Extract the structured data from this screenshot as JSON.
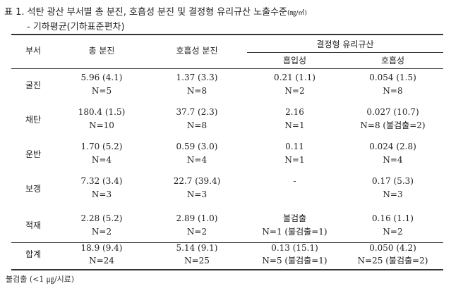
{
  "table": {
    "title": "표 1.  석탄 광산 부서별 총 분진, 호흡성 분진 및 결정형 유리규산 노출수준",
    "title_unit": "(㎎/㎥)",
    "subtitle": "- 기하평균(기하표준편차)",
    "headers": {
      "dept": "부서",
      "total_dust": "총 분진",
      "resp_dust": "호흡성 분진",
      "silica_group": "결정형 유리규산",
      "inhalable": "흡입성",
      "respirable": "호흡성"
    },
    "rows": [
      {
        "dept": "굴진",
        "total": [
          "5.96 (4.1)",
          "N=5"
        ],
        "resp": [
          "1.37 (3.3)",
          "N=8"
        ],
        "inh": [
          "0.21 (1.1)",
          "N=2"
        ],
        "silica_resp": [
          "0.054 (1.5)",
          "N=8"
        ]
      },
      {
        "dept": "채탄",
        "total": [
          "180.4 (1.5)",
          "N=10"
        ],
        "resp": [
          "37.7 (2.3)",
          "N=8"
        ],
        "inh": [
          "2.16",
          "N=1"
        ],
        "silica_resp": [
          "0.027 (10.7)",
          "N=8 (불검출=2)"
        ]
      },
      {
        "dept": "운반",
        "total": [
          "1.70 (5.2)",
          "N=4"
        ],
        "resp": [
          "0.59 (3.0)",
          "N=4"
        ],
        "inh": [
          "0.11",
          "N=1"
        ],
        "silica_resp": [
          "0.024 (2.8)",
          "N=4"
        ]
      },
      {
        "dept": "보갱",
        "total": [
          "7.32 (3.4)",
          "N=3"
        ],
        "resp": [
          "22.7 (39.4)",
          "N=3"
        ],
        "inh": [
          "-",
          ""
        ],
        "silica_resp": [
          "0.17 (5.3)",
          "N=3"
        ]
      },
      {
        "dept": "적재",
        "total": [
          "2.28 (5.2)",
          "N=2"
        ],
        "resp": [
          "2.89 (1.0)",
          "N=2"
        ],
        "inh": [
          "불검출",
          "N=1 (불검출=1)"
        ],
        "silica_resp": [
          "0.16 (1.1)",
          "N=2"
        ]
      }
    ],
    "total_row": {
      "dept": "합계",
      "total": [
        "18.9 (9.4)",
        "N=24"
      ],
      "resp": [
        "5.14 (9.1)",
        "N=25"
      ],
      "inh": [
        "0.13 (15.1)",
        "N=5 (불검출=1)"
      ],
      "silica_resp": [
        "0.050 (4.2)",
        "N=25 (불검출=2)"
      ]
    },
    "footnote": "불검출 (<1 ㎍/시료)"
  }
}
